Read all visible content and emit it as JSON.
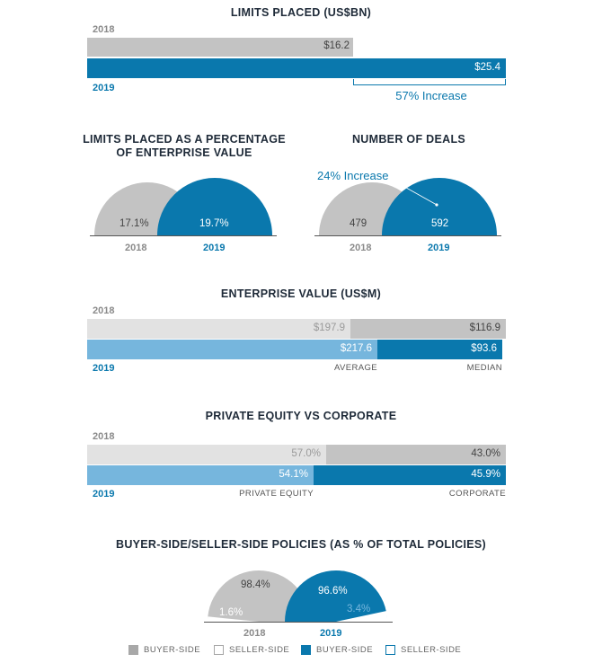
{
  "colors": {
    "buyer_2018": "#c3c3c3",
    "seller_2018": "#e2e2e2",
    "buyer_2019": "#0a78ad",
    "seller_2019": "#76b6dd",
    "title": "#1e2a38"
  },
  "chart_data": [
    {
      "type": "bar",
      "title": "LIMITS PLACED (US$BN)",
      "categories": [
        "2018",
        "2019"
      ],
      "values": [
        16.2,
        25.4
      ],
      "value_labels": [
        "$16.2",
        "$25.4"
      ],
      "annotation": "57% Increase"
    },
    {
      "type": "area",
      "title": "LIMITS PLACED AS A PERCENTAGE OF ENTERPRISE VALUE",
      "categories": [
        "2018",
        "2019"
      ],
      "values": [
        17.1,
        19.7
      ],
      "value_labels": [
        "17.1%",
        "19.7%"
      ]
    },
    {
      "type": "area",
      "title": "NUMBER OF DEALS",
      "categories": [
        "2018",
        "2019"
      ],
      "values": [
        479,
        592
      ],
      "value_labels": [
        "479",
        "592"
      ],
      "annotation": "24% Increase"
    },
    {
      "type": "bar",
      "title": "ENTERPRISE VALUE (US$M)",
      "categories": [
        "2018",
        "2019"
      ],
      "series": [
        {
          "name": "AVERAGE",
          "values": [
            197.9,
            217.6
          ],
          "value_labels": [
            "$197.9",
            "$217.6"
          ]
        },
        {
          "name": "MEDIAN",
          "values": [
            116.9,
            93.6
          ],
          "value_labels": [
            "$116.9",
            "$93.6"
          ]
        }
      ]
    },
    {
      "type": "bar",
      "title": "PRIVATE EQUITY VS CORPORATE",
      "categories": [
        "2018",
        "2019"
      ],
      "series": [
        {
          "name": "PRIVATE EQUITY",
          "values": [
            57.0,
            54.1
          ],
          "value_labels": [
            "57.0%",
            "54.1%"
          ]
        },
        {
          "name": "CORPORATE",
          "values": [
            43.0,
            45.9
          ],
          "value_labels": [
            "43.0%",
            "45.9%"
          ]
        }
      ]
    },
    {
      "type": "pie",
      "title": "BUYER-SIDE/SELLER-SIDE POLICIES (AS % OF TOTAL POLICIES)",
      "categories": [
        "2018",
        "2019"
      ],
      "series": [
        {
          "name": "BUYER-SIDE",
          "values": [
            98.4,
            96.6
          ],
          "value_labels": [
            "98.4%",
            "96.6%"
          ]
        },
        {
          "name": "SELLER-SIDE",
          "values": [
            1.6,
            3.4
          ],
          "value_labels": [
            "1.6%",
            "3.4%"
          ]
        }
      ],
      "legend": [
        "BUYER-SIDE",
        "SELLER-SIDE",
        "BUYER-SIDE",
        "SELLER-SIDE"
      ]
    }
  ]
}
